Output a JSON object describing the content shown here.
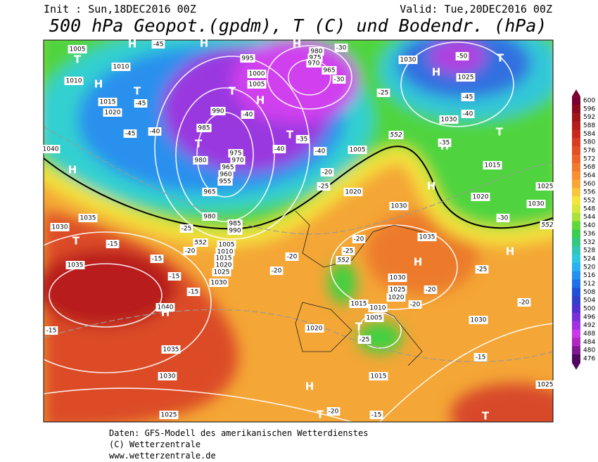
{
  "header": {
    "init": "Init : Sun,18DEC2016 00Z",
    "valid": "Valid: Tue,20DEC2016 00Z",
    "title": "500 hPa Geopot.(gpdm), T (C) und Bodendr. (hPa)"
  },
  "legend": {
    "levels": [
      600,
      596,
      592,
      588,
      584,
      580,
      576,
      572,
      568,
      564,
      560,
      556,
      552,
      548,
      544,
      540,
      536,
      532,
      528,
      524,
      520,
      516,
      512,
      508,
      504,
      500,
      496,
      492,
      488,
      484,
      480,
      476
    ],
    "colors": [
      "#7a0030",
      "#8c0a1e",
      "#a0141a",
      "#b41e1a",
      "#c8281e",
      "#d83c22",
      "#e45026",
      "#ec642a",
      "#f27a2e",
      "#f69032",
      "#f8a636",
      "#f8c63a",
      "#f4e43c",
      "#d8e83a",
      "#a8e23a",
      "#60d83c",
      "#3ccc50",
      "#36c880",
      "#30c8b4",
      "#2cc8e0",
      "#28b0f0",
      "#2490f0",
      "#2070e8",
      "#2050d8",
      "#3040c8",
      "#5030d0",
      "#7830d8",
      "#a030e0",
      "#c838e8",
      "#b028c0",
      "#801890",
      "#500860"
    ]
  },
  "map": {
    "pressure_labels": [
      "1005",
      "1010",
      "1010",
      "1015",
      "1020",
      "1040",
      "1030",
      "1035",
      "1035",
      "1040",
      "1035",
      "1030",
      "1025",
      "1000",
      "1005",
      "990",
      "985",
      "980",
      "975",
      "970",
      "965",
      "960",
      "955",
      "965",
      "980",
      "985",
      "990",
      "1005",
      "1010",
      "1015",
      "1020",
      "1025",
      "1030",
      "980",
      "975",
      "970",
      "965",
      "995",
      "1005",
      "1020",
      "1030",
      "1035",
      "1030",
      "1025",
      "1020",
      "1015",
      "1010",
      "1005",
      "1020",
      "1015",
      "1030",
      "1025",
      "1030",
      "1015",
      "1020",
      "1030",
      "1025",
      "1030",
      "1025"
    ],
    "pressure_centers": [
      "H",
      "T",
      "H",
      "T",
      "H",
      "T",
      "H",
      "T",
      "T",
      "H",
      "H",
      "T",
      "H",
      "T",
      "H",
      "T",
      "H",
      "H",
      "H",
      "H",
      "T",
      "H",
      "T",
      "T"
    ],
    "temperature_labels": [
      "-45",
      "-50",
      "-45",
      "-40",
      "-45",
      "-40",
      "-40",
      "-40",
      "-35",
      "-45",
      "-40",
      "-25",
      "-30",
      "-30",
      "-35",
      "-20",
      "-25",
      "-25",
      "-20",
      "-15",
      "-15",
      "-15",
      "-15",
      "-15",
      "-20",
      "-20",
      "-25",
      "-20",
      "-25",
      "-20",
      "-25",
      "-15",
      "-20",
      "-15",
      "-30",
      "-20",
      "-20"
    ],
    "geopotential_labels": [
      "552",
      "552",
      "552",
      "552"
    ]
  },
  "footer": {
    "source": "Daten: GFS-Modell des amerikanischen Wetterdienstes",
    "copyright": "(C) Wetterzentrale",
    "url": "www.wetterzentrale.de"
  }
}
